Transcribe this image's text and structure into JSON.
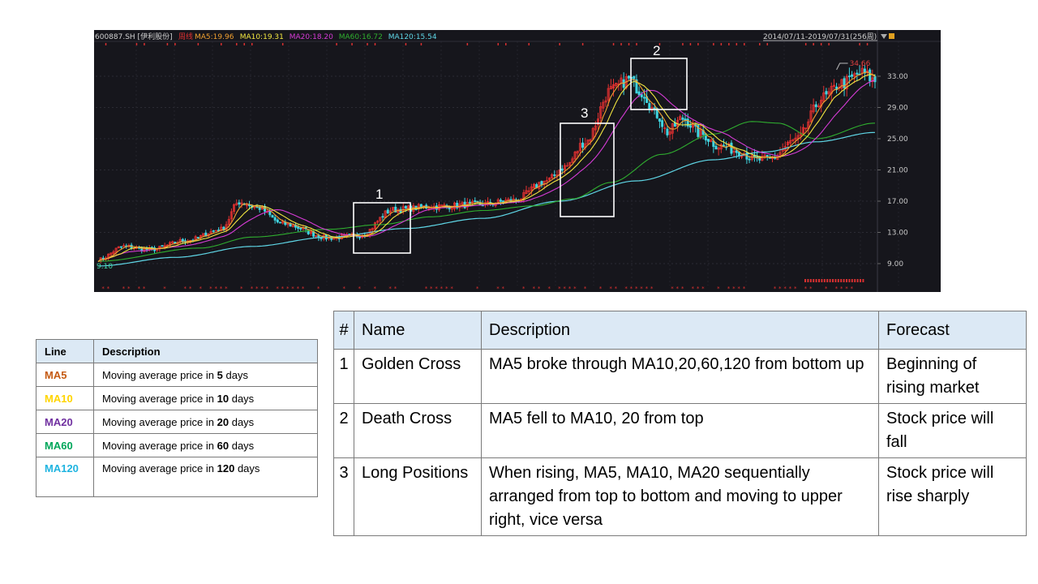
{
  "chart_data": {
    "type": "candlestick",
    "header": {
      "symbol": "600887.SH [伊利股份]",
      "period": "周线",
      "ma": [
        {
          "label": "MA5:19.96",
          "color": "#f0a030"
        },
        {
          "label": "MA10:19.31",
          "color": "#f2e640"
        },
        {
          "label": "MA20:18.20",
          "color": "#d63bd6"
        },
        {
          "label": "MA60:16.72",
          "color": "#2fae2f"
        },
        {
          "label": "MA120:15.54",
          "color": "#5fd6e6"
        }
      ],
      "range": "2014/07/11-2019/07/31(256周)"
    },
    "ylim": [
      7.5,
      35.8
    ],
    "yticks": [
      "33.00",
      "29.00",
      "25.00",
      "21.00",
      "17.00",
      "13.00",
      "9.00"
    ],
    "high_label": "34.66",
    "low_label": "9.10",
    "series_colors": {
      "up": "#e23030",
      "down": "#3fd4e0",
      "ma5": "#f0a030",
      "ma10": "#f2e640",
      "ma20": "#d63bd6",
      "ma60": "#2fae2f",
      "ma120": "#5fd6e6"
    },
    "close_anchors": [
      [
        0,
        9.5
      ],
      [
        10,
        11.2
      ],
      [
        20,
        10.8
      ],
      [
        35,
        12.0
      ],
      [
        48,
        13.4
      ],
      [
        55,
        16.9
      ],
      [
        62,
        16.2
      ],
      [
        72,
        14.1
      ],
      [
        90,
        12.3
      ],
      [
        102,
        12.6
      ],
      [
        115,
        15.9
      ],
      [
        130,
        16.3
      ],
      [
        150,
        16.6
      ],
      [
        162,
        17.1
      ],
      [
        175,
        19.6
      ],
      [
        182,
        21.4
      ],
      [
        190,
        24.6
      ],
      [
        200,
        31.2
      ],
      [
        207,
        32.6
      ],
      [
        212,
        31.0
      ],
      [
        218,
        28.1
      ],
      [
        222,
        25.8
      ],
      [
        228,
        27.6
      ],
      [
        235,
        25.6
      ],
      [
        242,
        24.1
      ],
      [
        250,
        23.4
      ],
      [
        256,
        22.3
      ],
      [
        262,
        22.4
      ],
      [
        272,
        24.8
      ],
      [
        283,
        30.3
      ],
      [
        290,
        32.1
      ],
      [
        298,
        33.4
      ],
      [
        303,
        32.4
      ]
    ],
    "ma120_anchors": [
      [
        0,
        8.7
      ],
      [
        30,
        9.8
      ],
      [
        60,
        11.2
      ],
      [
        90,
        12.4
      ],
      [
        120,
        13.5
      ],
      [
        150,
        14.8
      ],
      [
        180,
        17.0
      ],
      [
        210,
        19.6
      ],
      [
        240,
        22.3
      ],
      [
        260,
        23.3
      ],
      [
        280,
        24.6
      ],
      [
        303,
        25.8
      ]
    ],
    "ma60_anchors": [
      [
        0,
        9.3
      ],
      [
        40,
        11.0
      ],
      [
        60,
        12.4
      ],
      [
        90,
        13.4
      ],
      [
        110,
        14.0
      ],
      [
        130,
        15.0
      ],
      [
        150,
        15.8
      ],
      [
        170,
        16.4
      ],
      [
        185,
        17.3
      ],
      [
        200,
        19.4
      ],
      [
        220,
        23.0
      ],
      [
        240,
        25.6
      ],
      [
        255,
        27.2
      ],
      [
        265,
        27.0
      ],
      [
        280,
        25.0
      ],
      [
        303,
        27.0
      ]
    ],
    "annotations": [
      {
        "label": "1",
        "note": "Golden Cross"
      },
      {
        "label": "2",
        "note": "Death Cross"
      },
      {
        "label": "3",
        "note": "Long Positions"
      }
    ]
  },
  "legend_table": {
    "headers": [
      "Line",
      "Description"
    ],
    "rows": [
      {
        "line": "MA5",
        "color": "#c55a11",
        "pre": "Moving average price in ",
        "num": "5",
        "post": " days"
      },
      {
        "line": "MA10",
        "color": "#ffd500",
        "pre": "Moving average price in ",
        "num": "10",
        "post": " days"
      },
      {
        "line": "MA20",
        "color": "#7030a0",
        "pre": "Moving average price in ",
        "num": "20",
        "post": " days"
      },
      {
        "line": "MA60",
        "color": "#00a65a",
        "pre": "Moving average price in ",
        "num": "60",
        "post": " days"
      },
      {
        "line": "MA120",
        "color": "#1fb4e0",
        "pre": "Moving average price in ",
        "num": "120",
        "post": " days"
      }
    ]
  },
  "cross_table": {
    "headers": [
      "#",
      "Name",
      "Description",
      "Forecast"
    ],
    "rows": [
      {
        "num": "1",
        "name": "Golden Cross",
        "description": "MA5 broke through MA10,20,60,120 from bottom up",
        "forecast": "Beginning of rising market"
      },
      {
        "num": "2",
        "name": "Death Cross",
        "description": "MA5 fell to MA10, 20 from top",
        "forecast": "Stock price will fall"
      },
      {
        "num": "3",
        "name": "Long Positions",
        "description": "When rising, MA5, MA10, MA20 sequentially arranged from top to bottom and moving to upper right, vice versa",
        "forecast": "Stock price will rise sharply"
      }
    ]
  }
}
